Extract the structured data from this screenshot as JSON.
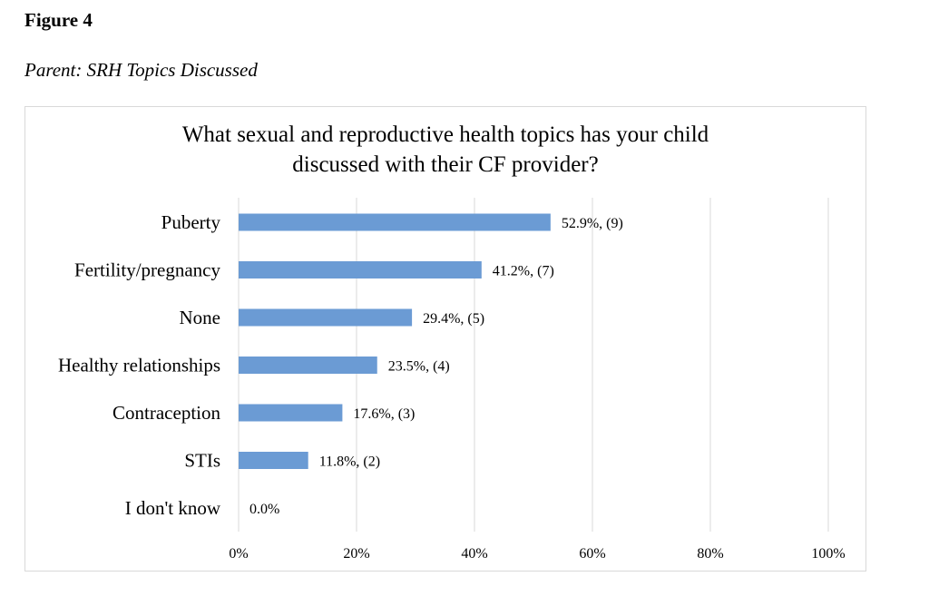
{
  "figure": {
    "label": "Figure 4",
    "caption": "Parent: SRH Topics Discussed"
  },
  "chart_data": {
    "type": "bar",
    "orientation": "horizontal",
    "title_lines": [
      "What sexual and reproductive health topics has your child",
      "discussed with their CF provider?"
    ],
    "categories": [
      "Puberty",
      "Fertility/pregnancy",
      "None",
      "Healthy relationships",
      "Contraception",
      "STIs",
      "I don't know"
    ],
    "values": [
      52.9,
      41.2,
      29.4,
      23.5,
      17.6,
      11.8,
      0.0
    ],
    "data_labels": [
      "52.9%, (9)",
      "41.2%, (7)",
      "29.4%, (5)",
      "23.5%, (4)",
      "17.6%, (3)",
      "11.8%, (2)",
      "0.0%"
    ],
    "x_ticks": [
      "0%",
      "20%",
      "40%",
      "60%",
      "80%",
      "100%"
    ],
    "xlim": [
      0,
      100
    ],
    "grid": true,
    "bar_color": "#6b9bd4",
    "grid_color": "#d9d9d9"
  }
}
